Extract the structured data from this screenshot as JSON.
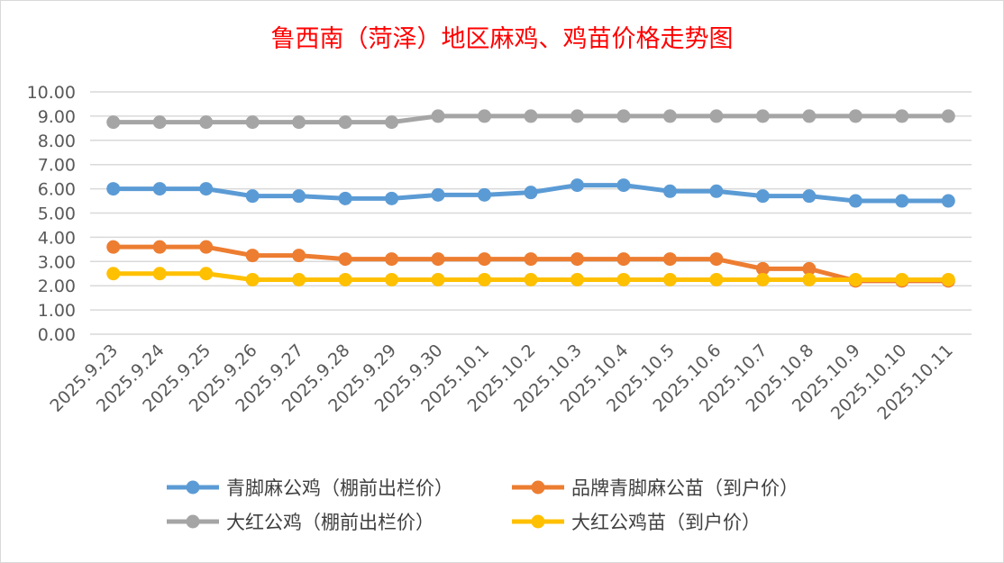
{
  "chart_data": {
    "type": "line",
    "title": "鲁西南（菏泽）地区麻鸡、鸡苗价格走势图",
    "title_color": "#ff0000",
    "xlabel": "",
    "ylabel": "",
    "ylim": [
      0,
      10
    ],
    "yticks": [
      "0.00",
      "1.00",
      "2.00",
      "3.00",
      "4.00",
      "5.00",
      "6.00",
      "7.00",
      "8.00",
      "9.00",
      "10.00"
    ],
    "grid": true,
    "legend_position": "bottom",
    "categories": [
      "2025.9.23",
      "2025.9.24",
      "2025.9.25",
      "2025.9.26",
      "2025.9.27",
      "2025.9.28",
      "2025.9.29",
      "2025.9.30",
      "2025.10.1",
      "2025.10.2",
      "2025.10.3",
      "2025.10.4",
      "2025.10.5",
      "2025.10.6",
      "2025.10.7",
      "2025.10.8",
      "2025.10.9",
      "2025.10.10",
      "2025.10.11"
    ],
    "series": [
      {
        "name": "青脚麻公鸡（棚前出栏价）",
        "color": "#5b9bd5",
        "values": [
          6.0,
          6.0,
          6.0,
          5.7,
          5.7,
          5.6,
          5.6,
          5.75,
          5.75,
          5.85,
          6.15,
          6.15,
          5.9,
          5.9,
          5.7,
          5.7,
          5.5,
          5.5,
          5.5
        ]
      },
      {
        "name": "品牌青脚麻公苗（到户价）",
        "color": "#ed7d31",
        "values": [
          3.6,
          3.6,
          3.6,
          3.25,
          3.25,
          3.1,
          3.1,
          3.1,
          3.1,
          3.1,
          3.1,
          3.1,
          3.1,
          3.1,
          2.7,
          2.7,
          2.2,
          2.2,
          2.2
        ]
      },
      {
        "name": "大红公鸡（棚前出栏价）",
        "color": "#a5a5a5",
        "values": [
          8.75,
          8.75,
          8.75,
          8.75,
          8.75,
          8.75,
          8.75,
          9.0,
          9.0,
          9.0,
          9.0,
          9.0,
          9.0,
          9.0,
          9.0,
          9.0,
          9.0,
          9.0,
          9.0
        ]
      },
      {
        "name": "大红公鸡苗（到户价）",
        "color": "#ffc000",
        "values": [
          2.5,
          2.5,
          2.5,
          2.25,
          2.25,
          2.25,
          2.25,
          2.25,
          2.25,
          2.25,
          2.25,
          2.25,
          2.25,
          2.25,
          2.25,
          2.25,
          2.25,
          2.25,
          2.25
        ]
      }
    ]
  }
}
